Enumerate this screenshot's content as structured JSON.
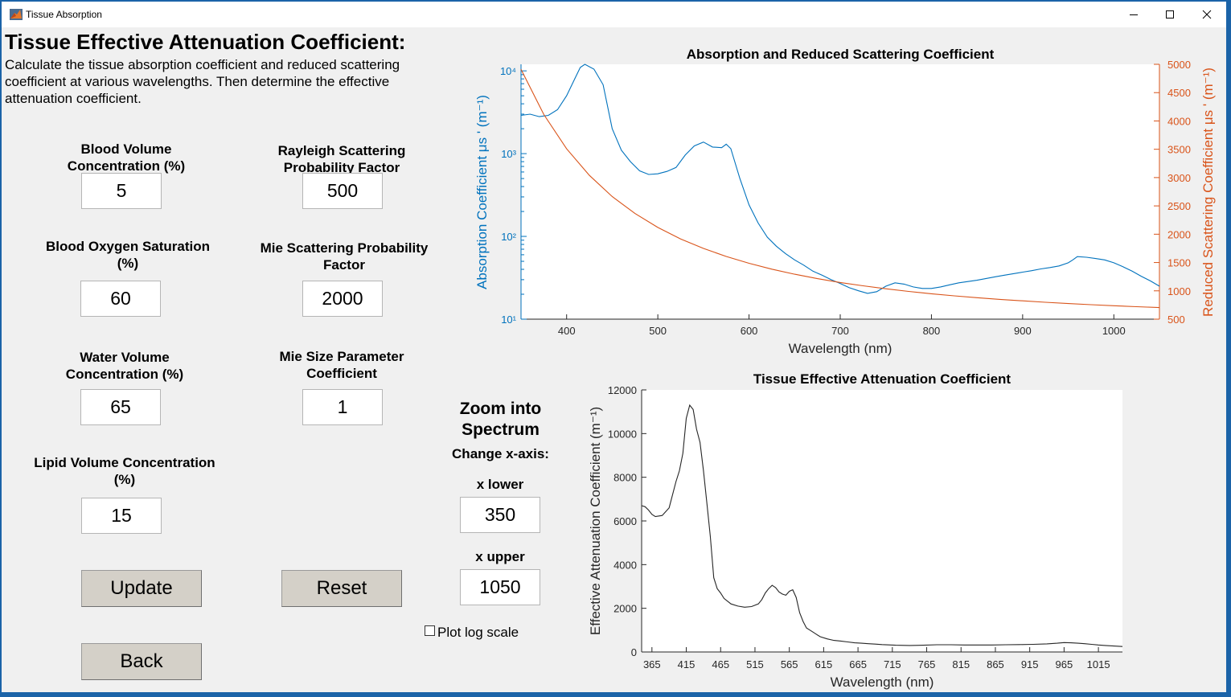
{
  "window": {
    "title": "Tissue Absorption",
    "minimize_label": "minimize",
    "maximize_label": "maximize",
    "close_label": "close"
  },
  "header": {
    "title": "Tissue Effective Attenuation Coefficient:",
    "description": "Calculate the tissue absorption coefficient and reduced scattering coefficient at various wavelengths. Then determine the effective attenuation coefficient."
  },
  "params": {
    "blood_volume": {
      "label": "Blood Volume Concentration (%)",
      "value": "5"
    },
    "rayleigh": {
      "label": "Rayleigh Scattering Probability Factor",
      "value": "500"
    },
    "blood_oxygen": {
      "label": "Blood Oxygen Saturation (%)",
      "value": "60"
    },
    "mie_prob": {
      "label": "Mie Scattering Probability Factor",
      "value": "2000"
    },
    "water_volume": {
      "label": "Water Volume Concentration (%)",
      "value": "65"
    },
    "mie_size": {
      "label": "Mie Size Parameter Coefficient",
      "value": "1"
    },
    "lipid_volume": {
      "label": "Lipid Volume Concentration (%)",
      "value": "15"
    }
  },
  "buttons": {
    "update": "Update",
    "reset": "Reset",
    "back": "Back"
  },
  "zoom": {
    "title": "Zoom   into Spectrum",
    "change_label": "Change x-axis:",
    "x_lower_label": "x lower",
    "x_lower_value": "350",
    "x_upper_label": "x upper",
    "x_upper_value": "1050",
    "log_scale_label": "Plot log scale",
    "log_scale_checked": false
  },
  "chart_data": [
    {
      "type": "line",
      "title": "Absorption and Reduced Scattering Coefficient",
      "xlabel": "Wavelength (nm)",
      "ylabel_left": "Absorption Coefficient μs ' (m⁻¹)",
      "ylabel_right": "Reduced Scattering Coefficient μs ' (m⁻¹)",
      "xlim": [
        350,
        1050
      ],
      "xticks": [
        "400",
        "500",
        "600",
        "700",
        "800",
        "900",
        "1000"
      ],
      "y_left_scale": "log",
      "ylim_left": [
        10,
        12000
      ],
      "yticks_left": [
        "10¹",
        "10²",
        "10³",
        "10⁴"
      ],
      "ylim_right": [
        500,
        5000
      ],
      "yticks_right": [
        "500",
        "1000",
        "1500",
        "2000",
        "2500",
        "3000",
        "3500",
        "4000",
        "4500",
        "5000"
      ],
      "left_axis_color": "#0072bd",
      "right_axis_color": "#d95319",
      "series": [
        {
          "axis": "left",
          "color": "#0072bd",
          "x": [
            350,
            360,
            370,
            380,
            390,
            400,
            410,
            415,
            420,
            430,
            440,
            450,
            460,
            470,
            480,
            490,
            500,
            510,
            520,
            530,
            540,
            550,
            560,
            570,
            575,
            580,
            590,
            600,
            610,
            620,
            630,
            640,
            650,
            660,
            670,
            680,
            690,
            700,
            710,
            720,
            730,
            740,
            750,
            760,
            770,
            780,
            790,
            800,
            810,
            820,
            830,
            840,
            850,
            860,
            870,
            880,
            890,
            900,
            910,
            920,
            930,
            940,
            950,
            955,
            960,
            970,
            980,
            990,
            1000,
            1010,
            1020,
            1030,
            1040,
            1050
          ],
          "y": [
            2900,
            3000,
            2800,
            2900,
            3400,
            5000,
            8500,
            11000,
            12000,
            10500,
            6800,
            2000,
            1100,
            800,
            620,
            560,
            570,
            610,
            680,
            960,
            1240,
            1380,
            1200,
            1180,
            1300,
            1150,
            500,
            240,
            145,
            98,
            76,
            62,
            52,
            45,
            38,
            34,
            30,
            27,
            24,
            22,
            20.5,
            21.5,
            25,
            27.5,
            26.5,
            24.5,
            23.5,
            23.5,
            24.5,
            26,
            27.5,
            28.5,
            29.5,
            31,
            32.5,
            34,
            35.5,
            37,
            38.5,
            40.5,
            42,
            44,
            48,
            52,
            57,
            56,
            54,
            52,
            48,
            43,
            38,
            33,
            29,
            25
          ]
        },
        {
          "axis": "right",
          "color": "#d95319",
          "x": [
            350,
            375,
            400,
            425,
            450,
            475,
            500,
            525,
            550,
            575,
            600,
            625,
            650,
            675,
            700,
            725,
            750,
            775,
            800,
            825,
            850,
            875,
            900,
            925,
            950,
            975,
            1000,
            1025,
            1050
          ],
          "y": [
            4911,
            4113,
            3508,
            3038,
            2665,
            2365,
            2120,
            1917,
            1749,
            1607,
            1486,
            1383,
            1293,
            1216,
            1148,
            1089,
            1036,
            990,
            949,
            912,
            879,
            849,
            823,
            798,
            776,
            756,
            737,
            720,
            705
          ]
        }
      ]
    },
    {
      "type": "line",
      "title": "Tissue Effective Attenuation Coefficient",
      "xlabel": "Wavelength (nm)",
      "ylabel": "Effective Attenuation Coefficient (m⁻¹)",
      "xlim": [
        350,
        1050
      ],
      "xticks": [
        "365",
        "415",
        "465",
        "515",
        "565",
        "615",
        "665",
        "715",
        "765",
        "815",
        "865",
        "915",
        "965",
        "1015"
      ],
      "ylim": [
        0,
        12000
      ],
      "yticks": [
        "0",
        "2000",
        "4000",
        "6000",
        "8000",
        "10000",
        "12000"
      ],
      "series": [
        {
          "color": "#262626",
          "x": [
            350,
            355,
            360,
            365,
            370,
            380,
            390,
            400,
            405,
            410,
            415,
            420,
            425,
            430,
            435,
            440,
            445,
            450,
            455,
            460,
            465,
            470,
            480,
            490,
            500,
            510,
            520,
            525,
            530,
            535,
            540,
            545,
            550,
            555,
            560,
            565,
            570,
            575,
            580,
            585,
            590,
            595,
            600,
            605,
            610,
            620,
            630,
            640,
            650,
            660,
            670,
            680,
            690,
            700,
            720,
            740,
            760,
            780,
            800,
            820,
            840,
            860,
            880,
            900,
            920,
            940,
            955,
            965,
            975,
            985,
            995,
            1005,
            1015,
            1025,
            1035,
            1050
          ],
          "y": [
            6700,
            6650,
            6500,
            6300,
            6200,
            6250,
            6600,
            7800,
            8300,
            9100,
            10700,
            11300,
            11100,
            10200,
            9600,
            8300,
            6800,
            5300,
            3400,
            2900,
            2700,
            2450,
            2200,
            2100,
            2050,
            2080,
            2200,
            2400,
            2700,
            2900,
            3050,
            2950,
            2750,
            2650,
            2600,
            2780,
            2850,
            2500,
            1800,
            1400,
            1100,
            1000,
            900,
            800,
            700,
            600,
            530,
            500,
            460,
            420,
            400,
            380,
            360,
            340,
            310,
            300,
            310,
            330,
            330,
            320,
            320,
            320,
            330,
            340,
            350,
            370,
            400,
            430,
            420,
            400,
            380,
            350,
            320,
            300,
            280,
            250
          ]
        }
      ]
    }
  ]
}
